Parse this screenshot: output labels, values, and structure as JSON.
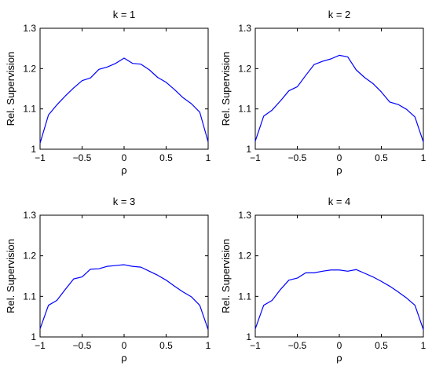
{
  "chart_data": [
    {
      "type": "line",
      "title": "k = 1",
      "xlabel": "ρ",
      "ylabel": "Rel. Supervision",
      "xlim": [
        -1,
        1
      ],
      "ylim": [
        1,
        1.3
      ],
      "xticks": [
        -1,
        -0.5,
        0,
        0.5,
        1
      ],
      "xtick_labels": [
        "−1",
        "−0.5",
        "0",
        "0.5",
        "1"
      ],
      "yticks": [
        1,
        1.1,
        1.2,
        1.3
      ],
      "ytick_labels": [
        "1",
        "1.1",
        "1.2",
        "1.3"
      ],
      "color": "#0000ff",
      "series": [
        {
          "x": [
            -1,
            -0.9,
            -0.8,
            -0.7,
            -0.6,
            -0.5,
            -0.4,
            -0.3,
            -0.2,
            -0.1,
            0,
            0.1,
            0.2,
            0.3,
            0.4,
            0.5,
            0.6,
            0.7,
            0.8,
            0.9,
            1
          ],
          "values": [
            1.015,
            1.085,
            1.11,
            1.132,
            1.152,
            1.17,
            1.177,
            1.198,
            1.204,
            1.213,
            1.226,
            1.213,
            1.211,
            1.197,
            1.178,
            1.166,
            1.148,
            1.128,
            1.113,
            1.092,
            1.018
          ]
        }
      ]
    },
    {
      "type": "line",
      "title": "k = 2",
      "xlabel": "ρ",
      "ylabel": "Rel. Supervision",
      "xlim": [
        -1,
        1
      ],
      "ylim": [
        1,
        1.3
      ],
      "xticks": [
        -1,
        -0.5,
        0,
        0.5,
        1
      ],
      "xtick_labels": [
        "−1",
        "−0.5",
        "0",
        "0.5",
        "1"
      ],
      "yticks": [
        1,
        1.1,
        1.2,
        1.3
      ],
      "ytick_labels": [
        "1",
        "1.1",
        "1.2",
        "1.3"
      ],
      "color": "#0000ff",
      "series": [
        {
          "x": [
            -1,
            -0.9,
            -0.8,
            -0.7,
            -0.6,
            -0.5,
            -0.4,
            -0.3,
            -0.2,
            -0.1,
            0,
            0.1,
            0.2,
            0.3,
            0.4,
            0.5,
            0.6,
            0.7,
            0.8,
            0.9,
            1
          ],
          "values": [
            1.02,
            1.082,
            1.097,
            1.12,
            1.145,
            1.155,
            1.183,
            1.21,
            1.218,
            1.224,
            1.233,
            1.229,
            1.197,
            1.178,
            1.163,
            1.142,
            1.117,
            1.111,
            1.099,
            1.08,
            1.018
          ]
        }
      ]
    },
    {
      "type": "line",
      "title": "k = 3",
      "xlabel": "ρ",
      "ylabel": "Rel. Supervision",
      "xlim": [
        -1,
        1
      ],
      "ylim": [
        1,
        1.3
      ],
      "xticks": [
        -1,
        -0.5,
        0,
        0.5,
        1
      ],
      "xtick_labels": [
        "−1",
        "−0.5",
        "0",
        "0.5",
        "1"
      ],
      "yticks": [
        1,
        1.1,
        1.2,
        1.3
      ],
      "ytick_labels": [
        "1",
        "1.1",
        "1.2",
        "1.3"
      ],
      "color": "#0000ff",
      "series": [
        {
          "x": [
            -1,
            -0.9,
            -0.8,
            -0.7,
            -0.6,
            -0.5,
            -0.4,
            -0.3,
            -0.2,
            -0.1,
            0,
            0.1,
            0.2,
            0.3,
            0.4,
            0.5,
            0.6,
            0.7,
            0.8,
            0.9,
            1
          ],
          "values": [
            1.02,
            1.078,
            1.09,
            1.117,
            1.143,
            1.148,
            1.167,
            1.168,
            1.174,
            1.176,
            1.178,
            1.174,
            1.172,
            1.162,
            1.152,
            1.14,
            1.125,
            1.111,
            1.099,
            1.078,
            1.018
          ]
        }
      ]
    },
    {
      "type": "line",
      "title": "k = 4",
      "xlabel": "ρ",
      "ylabel": "Rel. Supervision",
      "xlim": [
        -1,
        1
      ],
      "ylim": [
        1,
        1.3
      ],
      "xticks": [
        -1,
        -0.5,
        0,
        0.5,
        1
      ],
      "xtick_labels": [
        "−1",
        "−0.5",
        "0",
        "0.5",
        "1"
      ],
      "yticks": [
        1,
        1.1,
        1.2,
        1.3
      ],
      "ytick_labels": [
        "1",
        "1.1",
        "1.2",
        "1.3"
      ],
      "color": "#0000ff",
      "series": [
        {
          "x": [
            -1,
            -0.9,
            -0.8,
            -0.7,
            -0.6,
            -0.5,
            -0.4,
            -0.3,
            -0.2,
            -0.1,
            0,
            0.1,
            0.2,
            0.3,
            0.4,
            0.5,
            0.6,
            0.7,
            0.8,
            0.9,
            1
          ],
          "values": [
            1.02,
            1.078,
            1.09,
            1.117,
            1.14,
            1.145,
            1.158,
            1.158,
            1.162,
            1.165,
            1.165,
            1.162,
            1.166,
            1.157,
            1.148,
            1.137,
            1.125,
            1.111,
            1.096,
            1.078,
            1.018
          ]
        }
      ]
    }
  ]
}
